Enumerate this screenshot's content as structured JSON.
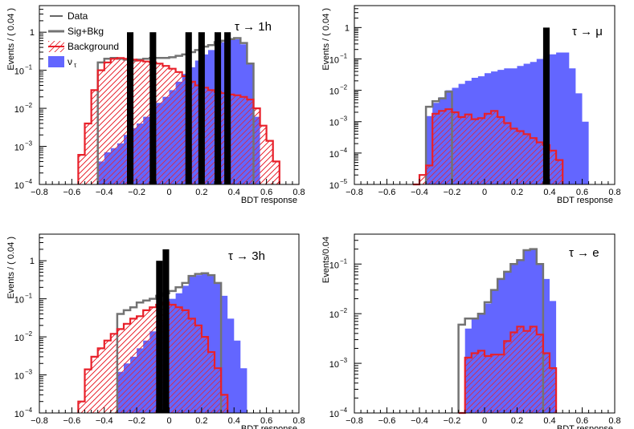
{
  "chart_data": [
    {
      "type": "histogram",
      "annotation": "τ → 1h",
      "xlabel": "BDT response",
      "ylabel": "Events / ( 0.04 )",
      "xlim": [
        -0.8,
        0.8
      ],
      "ylim": [
        0.0001,
        5
      ],
      "yscale": "log",
      "bin_width": 0.04,
      "xticks": [
        "−0.8",
        "−0.6",
        "−0.4",
        "−0.2",
        "0",
        "0.2",
        "0.4",
        "0.6",
        "0.8"
      ],
      "yticks": [
        {
          "value": 0.0001,
          "exp": "−4"
        },
        {
          "value": 0.001,
          "exp": "−3"
        },
        {
          "value": 0.01,
          "exp": "−2"
        },
        {
          "value": 0.1,
          "exp": "−1"
        },
        {
          "value": 1,
          "label": "1"
        }
      ],
      "legend": [
        {
          "key": "data",
          "label": "Data"
        },
        {
          "key": "sigbkg",
          "label": "Sig+Bkg"
        },
        {
          "key": "bkg",
          "label": "Background"
        },
        {
          "key": "sig",
          "label": "ν",
          "sub": "τ"
        }
      ],
      "series": [
        {
          "name": "ν",
          "kind": "signal",
          "x_start": -0.44,
          "values": [
            0.0004,
            0.0007,
            0.0009,
            0.0012,
            0.002,
            0.003,
            0.004,
            0.006,
            0.01,
            0.014,
            0.02,
            0.03,
            0.05,
            0.08,
            0.12,
            0.18,
            0.26,
            0.34,
            0.44,
            0.55,
            0.62,
            0.65,
            0.48,
            0.15,
            0.006
          ]
        },
        {
          "name": "Background",
          "kind": "background",
          "x_start": -0.56,
          "values": [
            0.0006,
            0.004,
            0.03,
            0.1,
            0.16,
            0.2,
            0.21,
            0.2,
            0.19,
            0.18,
            0.17,
            0.16,
            0.15,
            0.13,
            0.11,
            0.09,
            0.07,
            0.05,
            0.04,
            0.035,
            0.03,
            0.027,
            0.025,
            0.023,
            0.022,
            0.02,
            0.017,
            0.01,
            0.0035,
            0.0014,
            0.0004
          ]
        },
        {
          "name": "Sig+Bkg",
          "kind": "total",
          "x_start": -0.44,
          "values": [
            0.16,
            0.2,
            0.21,
            0.2,
            0.19,
            0.18,
            0.19,
            0.2,
            0.21,
            0.21,
            0.21,
            0.22,
            0.24,
            0.26,
            0.3,
            0.34,
            0.42,
            0.46,
            0.55,
            0.6,
            0.66,
            0.7,
            0.52,
            0.15
          ]
        },
        {
          "name": "Data",
          "kind": "data",
          "bins": [
            [
              -0.26,
              1
            ],
            [
              -0.12,
              1
            ],
            [
              0.1,
              1
            ],
            [
              0.18,
              1
            ],
            [
              0.28,
              1
            ],
            [
              0.34,
              1
            ]
          ]
        }
      ]
    },
    {
      "type": "histogram",
      "annotation": "τ → μ",
      "xlabel": "BDT response",
      "ylabel": "Events / ( 0.04 )",
      "xlim": [
        -0.8,
        0.8
      ],
      "ylim": [
        1e-05,
        5
      ],
      "yscale": "log",
      "bin_width": 0.04,
      "xticks": [
        "−0.8",
        "−0.6",
        "−0.4",
        "−0.2",
        "0",
        "0.2",
        "0.4",
        "0.6",
        "0.8"
      ],
      "yticks": [
        {
          "value": 1e-05,
          "exp": "−5"
        },
        {
          "value": 0.0001,
          "exp": "−4"
        },
        {
          "value": 0.001,
          "exp": "−3"
        },
        {
          "value": 0.01,
          "exp": "−2"
        },
        {
          "value": 0.1,
          "exp": "−1"
        },
        {
          "value": 1,
          "label": "1"
        }
      ],
      "series": [
        {
          "name": "ν",
          "kind": "signal",
          "x_start": -0.36,
          "values": [
            0.0015,
            0.004,
            0.006,
            0.01,
            0.012,
            0.016,
            0.02,
            0.025,
            0.028,
            0.035,
            0.04,
            0.045,
            0.05,
            0.05,
            0.06,
            0.07,
            0.08,
            0.1,
            0.12,
            0.14,
            0.16,
            0.16,
            0.05,
            0.008,
            0.001
          ]
        },
        {
          "name": "Background",
          "kind": "background",
          "x_start": -0.44,
          "values": [
            1e-05,
            2e-05,
            4e-05,
            0.0018,
            0.0022,
            0.0025,
            0.002,
            0.0014,
            0.0017,
            0.0012,
            0.0013,
            0.0018,
            0.0022,
            0.0014,
            0.0009,
            0.0006,
            0.0005,
            0.0004,
            0.0003,
            0.00022,
            0.00018,
            0.00012,
            6e-05
          ]
        },
        {
          "name": "Sig+Bkg",
          "kind": "total",
          "x_start": -0.36,
          "values": [
            0.003,
            0.0045,
            0.0055,
            0.009
          ]
        },
        {
          "name": "Data",
          "kind": "data",
          "bins": [
            [
              0.36,
              1
            ]
          ]
        }
      ]
    },
    {
      "type": "histogram",
      "annotation": "τ → 3h",
      "xlabel": "BDT response",
      "ylabel": "Events / ( 0.04 )",
      "xlim": [
        -0.8,
        0.8
      ],
      "ylim": [
        0.0001,
        5
      ],
      "yscale": "log",
      "bin_width": 0.04,
      "xticks": [
        "−0.8",
        "−0.6",
        "−0.4",
        "−0.2",
        "0",
        "0.2",
        "0.4",
        "0.6",
        "0.8"
      ],
      "yticks": [
        {
          "value": 0.0001,
          "exp": "−4"
        },
        {
          "value": 0.001,
          "exp": "−3"
        },
        {
          "value": 0.01,
          "exp": "−2"
        },
        {
          "value": 0.1,
          "exp": "−1"
        },
        {
          "value": 1,
          "label": "1"
        }
      ],
      "series": [
        {
          "name": "ν",
          "kind": "signal",
          "x_start": -0.32,
          "values": [
            0.0012,
            0.002,
            0.003,
            0.005,
            0.008,
            0.014,
            0.025,
            0.05,
            0.1,
            0.14,
            0.22,
            0.38,
            0.42,
            0.45,
            0.4,
            0.25,
            0.12,
            0.03,
            0.008,
            0.0015
          ]
        },
        {
          "name": "Background",
          "kind": "background",
          "x_start": -0.56,
          "values": [
            0.0002,
            0.0014,
            0.003,
            0.005,
            0.008,
            0.012,
            0.016,
            0.022,
            0.03,
            0.035,
            0.05,
            0.06,
            0.07,
            0.08,
            0.07,
            0.06,
            0.05,
            0.03,
            0.02,
            0.01,
            0.004,
            0.0015,
            0.0003
          ]
        },
        {
          "name": "Sig+Bkg",
          "kind": "total",
          "x_start": -0.32,
          "values": [
            0.04,
            0.05,
            0.06,
            0.08,
            0.09,
            0.1,
            0.12,
            0.14,
            0.16,
            0.2,
            0.26,
            0.4,
            0.45,
            0.47,
            0.42,
            0.26
          ]
        },
        {
          "name": "Data",
          "kind": "data",
          "bins": [
            [
              -0.08,
              1
            ],
            [
              -0.04,
              2
            ]
          ]
        }
      ]
    },
    {
      "type": "histogram",
      "annotation": "τ → e",
      "xlabel": "BDT response",
      "ylabel": "Events/0.04",
      "xlim": [
        -0.8,
        0.8
      ],
      "ylim": [
        0.0001,
        0.4
      ],
      "yscale": "log",
      "bin_width": 0.04,
      "xticks": [
        "−0.8",
        "−0.6",
        "−0.4",
        "−0.2",
        "0",
        "0.2",
        "0.4",
        "0.6",
        "0.8"
      ],
      "yticks": [
        {
          "value": 0.0001,
          "exp": "−4"
        },
        {
          "value": 0.001,
          "exp": "−3"
        },
        {
          "value": 0.01,
          "exp": "−2"
        },
        {
          "value": 0.1,
          "exp": "−1"
        }
      ],
      "series": [
        {
          "name": "ν",
          "kind": "signal",
          "x_start": -0.12,
          "values": [
            0.005,
            0.008,
            0.01,
            0.016,
            0.03,
            0.05,
            0.07,
            0.1,
            0.12,
            0.19,
            0.2,
            0.1,
            0.05,
            0.018
          ]
        },
        {
          "name": "Background",
          "kind": "background",
          "x_start": -0.16,
          "values": [
            0.0001,
            0.0013,
            0.0016,
            0.0018,
            0.0014,
            0.0015,
            0.0015,
            0.0028,
            0.0042,
            0.0055,
            0.0045,
            0.0055,
            0.0038,
            0.0016,
            0.0008
          ]
        },
        {
          "name": "Sig+Bkg",
          "kind": "total",
          "x_start": -0.16,
          "values": [
            0.006,
            0.008,
            0.008,
            0.01,
            0.017,
            0.03,
            0.05,
            0.07,
            0.1,
            0.12,
            0.19,
            0.2,
            0.1
          ]
        }
      ]
    }
  ]
}
